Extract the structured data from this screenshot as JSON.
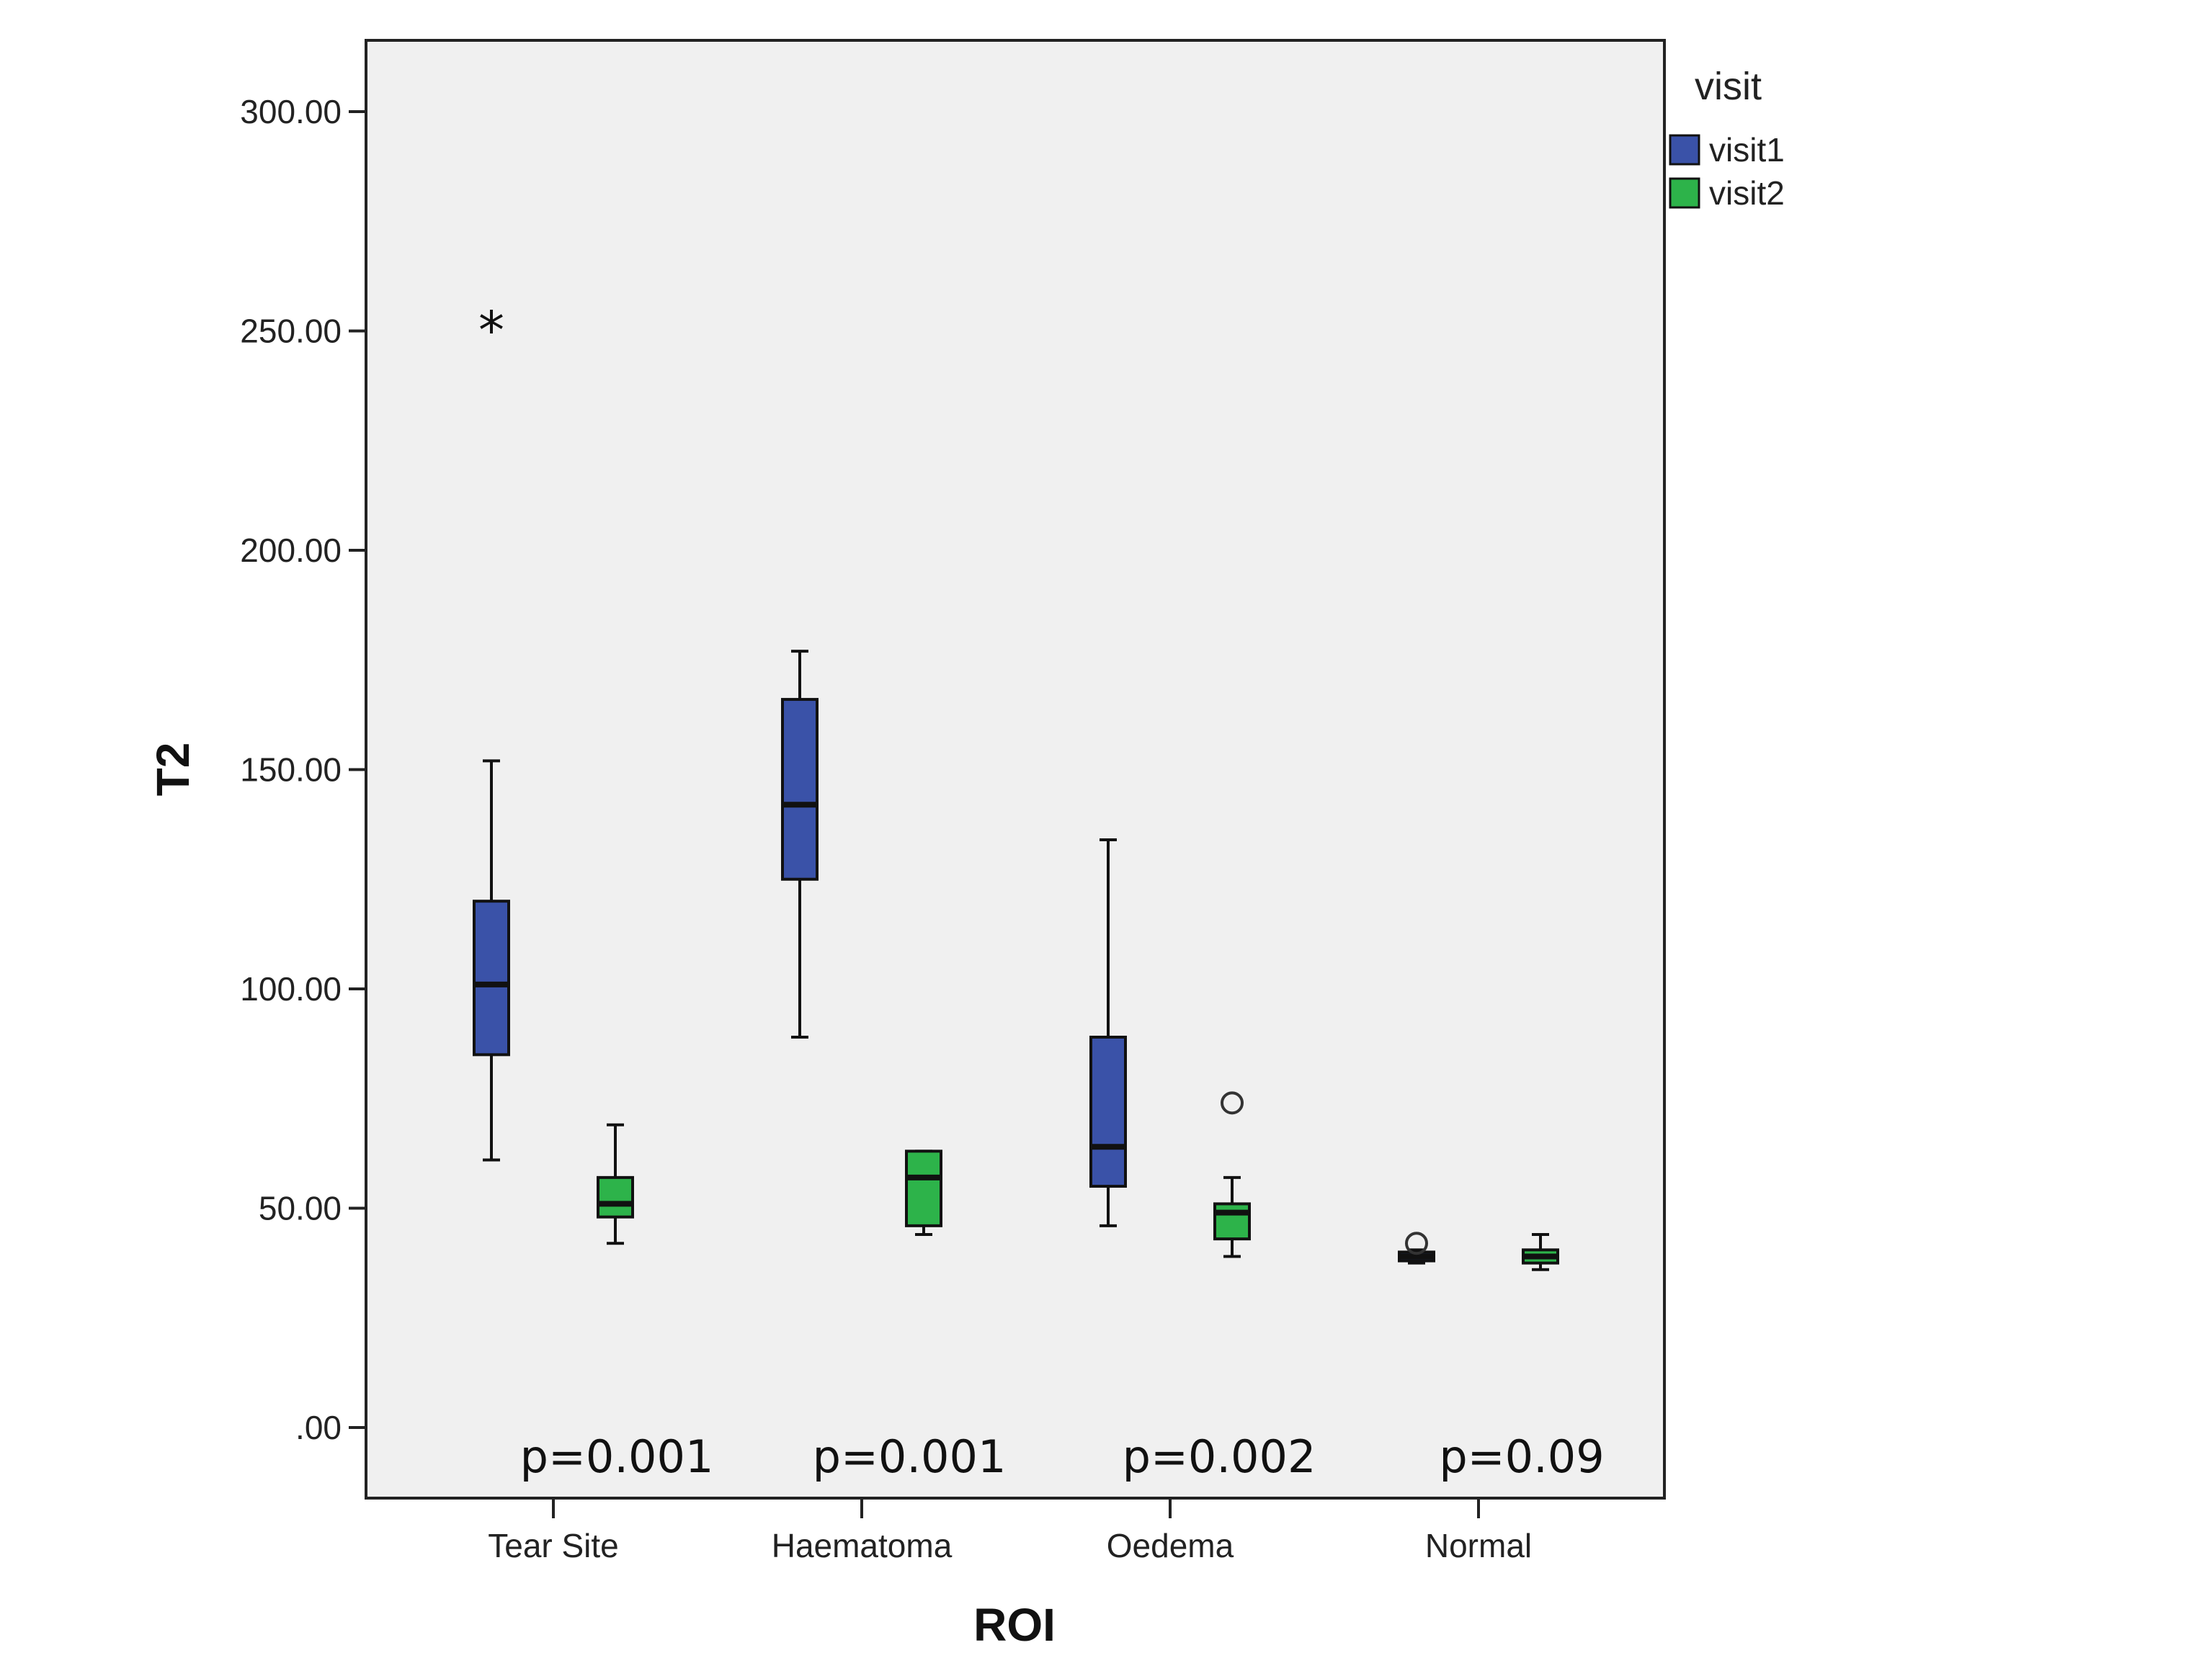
{
  "chart_data": {
    "type": "boxplot",
    "title": "",
    "xlabel": "ROI",
    "ylabel": "T2",
    "ylim": [
      -10,
      320
    ],
    "yticks": [
      0,
      50,
      100,
      150,
      200,
      250,
      300
    ],
    "ytick_labels": [
      ".00",
      "50.00",
      "100.00",
      "150.00",
      "200.00",
      "250.00",
      "300.00"
    ],
    "categories": [
      "Tear Site",
      "Haematoma",
      "Oedema",
      "Normal"
    ],
    "legend": {
      "title": "visit",
      "position": "right"
    },
    "grid": false,
    "series": [
      {
        "name": "visit1",
        "color": "#3a52a8",
        "boxes": [
          {
            "whisker_low": 61,
            "q1": 85,
            "median": 101,
            "q3": 120,
            "whisker_high": 152,
            "outliers": [],
            "extremes": [
              252
            ]
          },
          {
            "whisker_low": 89,
            "q1": 125,
            "median": 142,
            "q3": 166,
            "whisker_high": 177,
            "outliers": [],
            "extremes": []
          },
          {
            "whisker_low": 46,
            "q1": 55,
            "median": 64,
            "q3": 89,
            "whisker_high": 134,
            "outliers": [],
            "extremes": []
          },
          {
            "whisker_low": 37.5,
            "q1": 38,
            "median": 39,
            "q3": 40,
            "whisker_high": 40.5,
            "outliers": [
              42
            ],
            "extremes": []
          }
        ]
      },
      {
        "name": "visit2",
        "color": "#2db34a",
        "boxes": [
          {
            "whisker_low": 42,
            "q1": 48,
            "median": 51,
            "q3": 57,
            "whisker_high": 69,
            "outliers": [],
            "extremes": []
          },
          {
            "whisker_low": 44,
            "q1": 46,
            "median": 57,
            "q3": 63,
            "whisker_high": 63,
            "outliers": [],
            "extremes": []
          },
          {
            "whisker_low": 39,
            "q1": 43,
            "median": 49,
            "q3": 51,
            "whisker_high": 57,
            "outliers": [
              74
            ],
            "extremes": []
          },
          {
            "whisker_low": 36,
            "q1": 37.5,
            "median": 39,
            "q3": 40.5,
            "whisker_high": 44,
            "outliers": [],
            "extremes": []
          }
        ]
      }
    ],
    "annotations": [
      "p=0.001",
      "p=0.001",
      "p=0.002",
      "p=0.09"
    ]
  }
}
